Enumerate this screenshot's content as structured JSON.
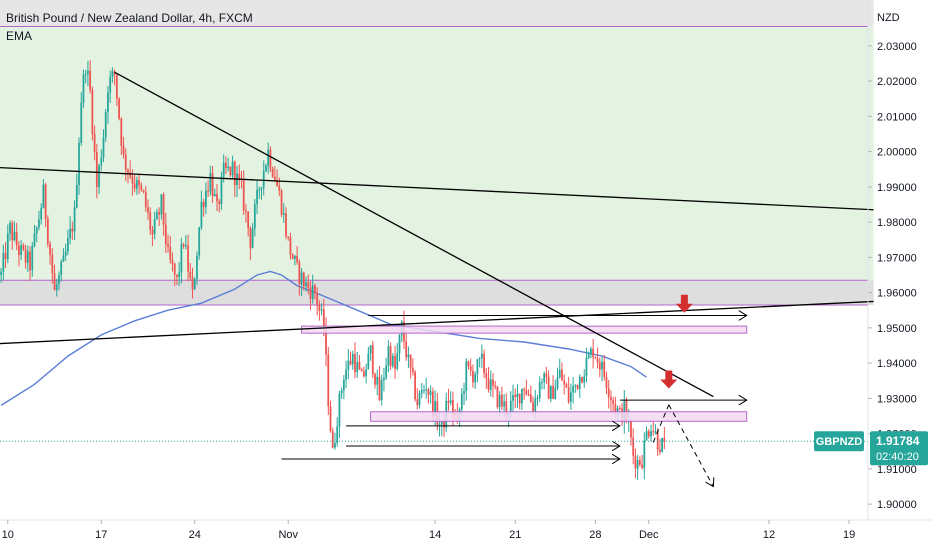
{
  "header": {
    "title": "British Pound / New Zealand Dollar, 4h, FXCM",
    "indicator": "EMA"
  },
  "chart_data": {
    "type": "candlestick",
    "title": "British Pound / New Zealand Dollar, 4h, FXCM",
    "symbol": "GBPNZD",
    "currency": "NZD",
    "ylim": [
      1.8955,
      2.043
    ],
    "y_ticks": [
      "1.90000",
      "1.91000",
      "1.92000",
      "1.93000",
      "1.94000",
      "1.95000",
      "1.96000",
      "1.97000",
      "1.98000",
      "1.99000",
      "2.00000",
      "2.01000",
      "2.02000",
      "2.03000"
    ],
    "x_ticks": [
      {
        "label": "10",
        "bar": 3
      },
      {
        "label": "17",
        "bar": 45
      },
      {
        "label": "24",
        "bar": 87
      },
      {
        "label": "Nov",
        "bar": 129
      },
      {
        "label": "14",
        "bar": 195
      },
      {
        "label": "21",
        "bar": 231
      },
      {
        "label": "28",
        "bar": 267
      },
      {
        "label": "Dec",
        "bar": 291
      },
      {
        "label": "12",
        "bar": 345
      },
      {
        "label": "19",
        "bar": 381
      }
    ],
    "total_bars": 390,
    "last_price": {
      "label": "GBPNZD",
      "value": "1.91784",
      "countdown": "02:40:20",
      "price": 1.91784
    },
    "colors": {
      "up": "#26a69a",
      "down": "#ef5350",
      "ema": "#5b7fd6",
      "zone_green": "#e3f2e1",
      "zone_gray": "#e4e4e4",
      "box_fill": "#f3d9f3",
      "box_line": "#b366c9",
      "line": "#000000",
      "arrow": "#d32f2f",
      "label_bg": "#26a69a"
    },
    "candle_path": [
      [
        0,
        1.965
      ],
      [
        4,
        1.978
      ],
      [
        8,
        1.972
      ],
      [
        13,
        1.968
      ],
      [
        19,
        1.988
      ],
      [
        24,
        1.96
      ],
      [
        28,
        1.968
      ],
      [
        33,
        1.982
      ],
      [
        36,
        2.015
      ],
      [
        38,
        2.025
      ],
      [
        40,
        2.017
      ],
      [
        43,
        1.99
      ],
      [
        46,
        2.005
      ],
      [
        48,
        2.019
      ],
      [
        51,
        2.022
      ],
      [
        55,
        1.998
      ],
      [
        60,
        1.991
      ],
      [
        64,
        1.987
      ],
      [
        68,
        1.976
      ],
      [
        72,
        1.985
      ],
      [
        75,
        1.97
      ],
      [
        79,
        1.963
      ],
      [
        82,
        1.975
      ],
      [
        86,
        1.959
      ],
      [
        90,
        1.985
      ],
      [
        94,
        1.993
      ],
      [
        97,
        1.983
      ],
      [
        100,
        1.994
      ],
      [
        104,
        1.995
      ],
      [
        108,
        1.989
      ],
      [
        112,
        1.975
      ],
      [
        116,
        1.99
      ],
      [
        120,
        2.0
      ],
      [
        123,
        1.993
      ],
      [
        126,
        1.985
      ],
      [
        129,
        1.974
      ],
      [
        133,
        1.966
      ],
      [
        137,
        1.962
      ],
      [
        141,
        1.96
      ],
      [
        145,
        1.95
      ],
      [
        147,
        1.93
      ],
      [
        149,
        1.914
      ],
      [
        151,
        1.925
      ],
      [
        154,
        1.937
      ],
      [
        158,
        1.942
      ],
      [
        162,
        1.935
      ],
      [
        166,
        1.943
      ],
      [
        170,
        1.93
      ],
      [
        174,
        1.944
      ],
      [
        177,
        1.938
      ],
      [
        180,
        1.95
      ],
      [
        183,
        1.94
      ],
      [
        187,
        1.929
      ],
      [
        191,
        1.934
      ],
      [
        194,
        1.928
      ],
      [
        198,
        1.921
      ],
      [
        201,
        1.93
      ],
      [
        205,
        1.923
      ],
      [
        209,
        1.938
      ],
      [
        212,
        1.937
      ],
      [
        216,
        1.94
      ],
      [
        220,
        1.933
      ],
      [
        223,
        1.93
      ],
      [
        227,
        1.927
      ],
      [
        231,
        1.929
      ],
      [
        235,
        1.934
      ],
      [
        239,
        1.928
      ],
      [
        243,
        1.936
      ],
      [
        247,
        1.931
      ],
      [
        251,
        1.937
      ],
      [
        255,
        1.93
      ],
      [
        259,
        1.935
      ],
      [
        263,
        1.94
      ],
      [
        266,
        1.944
      ],
      [
        269,
        1.94
      ],
      [
        272,
        1.935
      ],
      [
        275,
        1.929
      ],
      [
        278,
        1.925
      ],
      [
        280,
        1.927
      ],
      [
        282,
        1.922
      ],
      [
        284,
        1.914
      ],
      [
        286,
        1.912
      ],
      [
        288,
        1.913
      ],
      [
        290,
        1.92
      ],
      [
        292,
        1.923
      ],
      [
        295,
        1.918
      ],
      [
        298,
        1.916
      ]
    ],
    "ema_path": [
      [
        0,
        1.928
      ],
      [
        15,
        1.934
      ],
      [
        30,
        1.942
      ],
      [
        45,
        1.948
      ],
      [
        60,
        1.952
      ],
      [
        75,
        1.955
      ],
      [
        90,
        1.957
      ],
      [
        105,
        1.961
      ],
      [
        115,
        1.965
      ],
      [
        121,
        1.966
      ],
      [
        126,
        1.965
      ],
      [
        133,
        1.962
      ],
      [
        145,
        1.959
      ],
      [
        160,
        1.955
      ],
      [
        175,
        1.951
      ],
      [
        195,
        1.949
      ],
      [
        215,
        1.947
      ],
      [
        235,
        1.946
      ],
      [
        255,
        1.944
      ],
      [
        270,
        1.942
      ],
      [
        283,
        1.939
      ],
      [
        290,
        1.936
      ]
    ],
    "zones": [
      {
        "name": "green-zone",
        "type": "zone",
        "x1": -2,
        "x2": 392,
        "y1": 2.0355,
        "y2": 1.9565,
        "color": "#e3f2e1"
      },
      {
        "name": "top-gray-zone",
        "type": "zone",
        "x1": -2,
        "x2": 392,
        "y1": 2.0445,
        "y2": 2.0355,
        "color": "#e6e6e6"
      },
      {
        "name": "gray-band",
        "type": "zone",
        "x1": -2,
        "x2": 392,
        "y1": 1.9635,
        "y2": 1.9565,
        "color": "#dedede"
      }
    ],
    "boxes": [
      {
        "name": "resistance-box",
        "x1": 135,
        "x2": 335,
        "y1": 1.9505,
        "y2": 1.9485
      },
      {
        "name": "support-box",
        "x1": 166,
        "x2": 335,
        "y1": 1.9262,
        "y2": 1.9235
      }
    ],
    "zone_lines": [
      {
        "name": "top-zone-line",
        "y": 2.0355
      },
      {
        "name": "gray-band-top-line",
        "y": 1.9635
      },
      {
        "name": "gray-band-bottom-line",
        "y": 1.9565
      }
    ],
    "lines": [
      {
        "name": "upper-trendline",
        "x1": -2,
        "y1": 1.9955,
        "x2": 392,
        "y2": 1.9835,
        "width": 1.3
      },
      {
        "name": "lower-trendline",
        "x1": -2,
        "y1": 1.9455,
        "x2": 392,
        "y2": 1.9575,
        "width": 1.3
      },
      {
        "name": "descending-trendline",
        "x1": 51,
        "y1": 2.0225,
        "x2": 320,
        "y2": 1.9305,
        "width": 1.3
      }
    ],
    "arrows": [
      {
        "name": "arrow-1",
        "x1": 165,
        "y1": 1.9535,
        "x2": 335,
        "y2": 1.9535,
        "dashed": false
      },
      {
        "name": "arrow-2",
        "x1": 278,
        "y1": 1.9295,
        "x2": 335,
        "y2": 1.9295,
        "dashed": false
      },
      {
        "name": "arrow-3",
        "x1": 155,
        "y1": 1.9222,
        "x2": 278,
        "y2": 1.9222,
        "dashed": false
      },
      {
        "name": "arrow-4",
        "x1": 155,
        "y1": 1.9165,
        "x2": 278,
        "y2": 1.9165,
        "dashed": false
      },
      {
        "name": "arrow-5",
        "x1": 126,
        "y1": 1.9128,
        "x2": 278,
        "y2": 1.9128,
        "dashed": false
      },
      {
        "name": "projection-up",
        "x1": 293,
        "y1": 1.9175,
        "x2": 300,
        "y2": 1.9282,
        "dashed": true
      },
      {
        "name": "projection-down",
        "x1": 300,
        "y1": 1.9282,
        "x2": 320,
        "y2": 1.905,
        "dashed": true
      }
    ],
    "down_markers": [
      {
        "name": "down-marker-1",
        "bar": 307,
        "price": 1.956
      },
      {
        "name": "down-marker-2",
        "bar": 300,
        "price": 1.9345
      }
    ]
  }
}
